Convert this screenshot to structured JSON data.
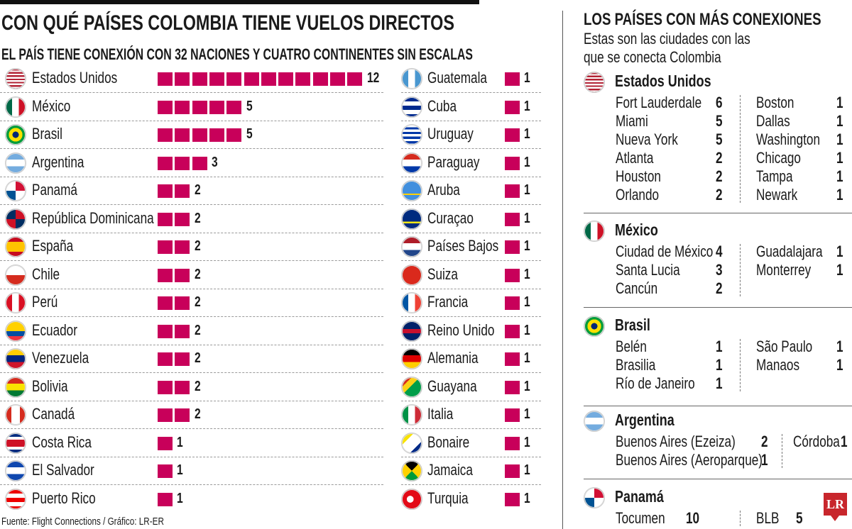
{
  "header": {
    "title": "CON QUÉ PAÍSES COLOMBIA TIENE VUELOS DIRECTOS",
    "subtitle": "EL PAÍS TIENE CONEXIÓN CON 32 NACIONES Y CUATRO CONTINENTES SIN ESCALAS"
  },
  "colors": {
    "bar": "#c8005a",
    "logo": "#c8262c"
  },
  "chart_data": {
    "type": "bar",
    "subtype": "pictogram",
    "title": "CON QUÉ PAÍSES COLOMBIA TIENE VUELOS DIRECTOS",
    "categories": [
      "Estados Unidos",
      "México",
      "Brasil",
      "Argentina",
      "Panamá",
      "República Dominicana",
      "España",
      "Chile",
      "Perú",
      "Ecuador",
      "Venezuela",
      "Bolivia",
      "Canadá",
      "Costa Rica",
      "El Salvador",
      "Puerto Rico",
      "Guatemala",
      "Cuba",
      "Uruguay",
      "Paraguay",
      "Aruba",
      "Curaçao",
      "Países Bajos",
      "Suiza",
      "Francia",
      "Reino Unido",
      "Alemania",
      "Guayana",
      "Italia",
      "Bonaire",
      "Jamaica",
      "Turquia"
    ],
    "values": [
      12,
      5,
      5,
      3,
      2,
      2,
      2,
      2,
      2,
      2,
      2,
      2,
      2,
      1,
      1,
      1,
      1,
      1,
      1,
      1,
      1,
      1,
      1,
      1,
      1,
      1,
      1,
      1,
      1,
      1,
      1,
      1
    ],
    "icons": [
      "flag-us",
      "flag-mx",
      "flag-br",
      "flag-ar",
      "flag-pa",
      "flag-do",
      "flag-es",
      "flag-cl",
      "flag-pe",
      "flag-ec",
      "flag-ve",
      "flag-bo",
      "flag-ca",
      "flag-cr",
      "flag-sv",
      "flag-pr",
      "flag-gt",
      "flag-cu",
      "flag-uy",
      "flag-py",
      "flag-aw",
      "flag-cw",
      "flag-nl",
      "flag-ch",
      "flag-fr",
      "flag-gb",
      "flag-de",
      "flag-gy",
      "flag-it",
      "flag-bq",
      "flag-jm",
      "flag-tr"
    ]
  },
  "right": {
    "title": "LOS PAÍSES CON MÁS CONEXIONES",
    "subtitle_1": "Estas son las ciudades con las",
    "subtitle_2": "que se conecta Colombia",
    "sections": [
      {
        "country": "Estados Unidos",
        "icon": "flag-us",
        "left": [
          [
            "Fort Lauderdale",
            "6"
          ],
          [
            "Miami",
            "5"
          ],
          [
            "Nueva York",
            "5"
          ],
          [
            "Atlanta",
            "2"
          ],
          [
            "Houston",
            "2"
          ],
          [
            "Orlando",
            "2"
          ]
        ],
        "right": [
          [
            "Boston",
            "1"
          ],
          [
            "Dallas",
            "1"
          ],
          [
            "Washington",
            "1"
          ],
          [
            "Chicago",
            "1"
          ],
          [
            "Tampa",
            "1"
          ],
          [
            "Newark",
            "1"
          ]
        ]
      },
      {
        "country": "México",
        "icon": "flag-mx",
        "left": [
          [
            "Ciudad de México",
            "4"
          ],
          [
            "Santa Lucia",
            "3"
          ],
          [
            "Cancún",
            "2"
          ]
        ],
        "right": [
          [
            "Guadalajara",
            "1"
          ],
          [
            "Monterrey",
            "1"
          ]
        ]
      },
      {
        "country": "Brasil",
        "icon": "flag-br",
        "left": [
          [
            "Belén",
            "1"
          ],
          [
            "Brasilia",
            "1"
          ],
          [
            "Río de Janeiro",
            "1"
          ]
        ],
        "right": [
          [
            "São Paulo",
            "1"
          ],
          [
            "Manaos",
            "1"
          ]
        ]
      },
      {
        "country": "Argentina",
        "icon": "flag-ar",
        "left": [
          [
            "Buenos Aires (Ezeiza)",
            "2"
          ],
          [
            "Buenos Aires (Aeroparque)",
            "1"
          ]
        ],
        "right": [
          [
            "Córdoba",
            "1"
          ]
        ]
      },
      {
        "country": "Panamá",
        "icon": "flag-pa",
        "left": [
          [
            "Tocumen",
            "10"
          ]
        ],
        "right": [
          [
            "BLB",
            "5"
          ]
        ]
      }
    ]
  },
  "footer": {
    "source": "Fuente: Flight Connections / Gráfico: LR-ER",
    "logo": "LR"
  }
}
